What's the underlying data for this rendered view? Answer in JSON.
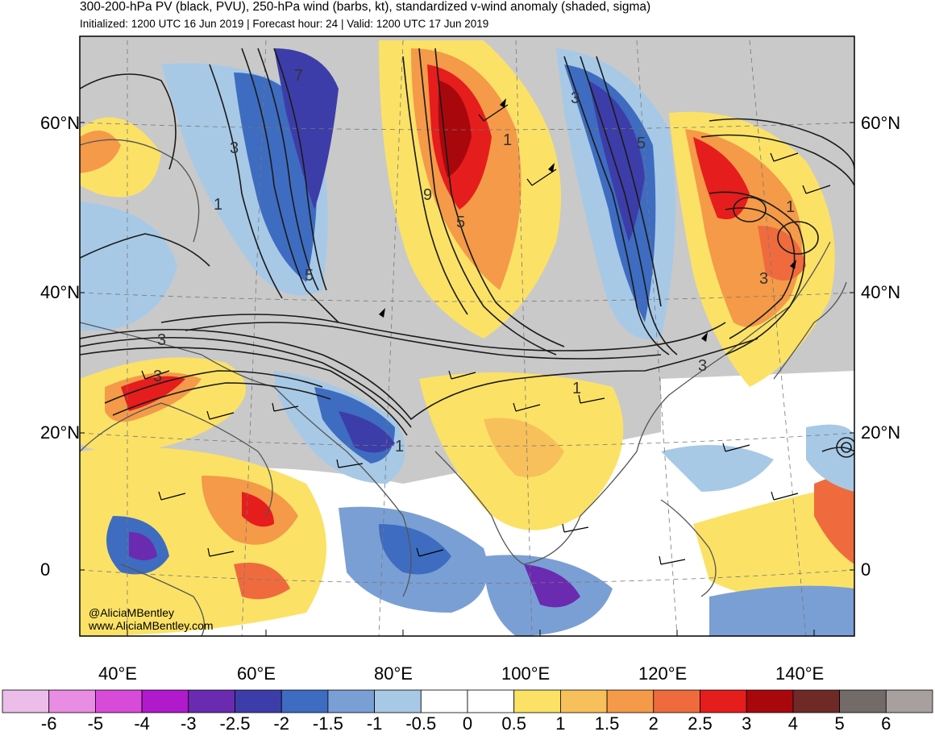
{
  "header": {
    "title": "300-200-hPa PV (black, PVU), 250-hPa wind (barbs, kt), standardized v-wind anomaly (shaded, sigma)",
    "subtitle": "Initialized: 1200 UTC 16 Jun 2019 | Forecast hour: 24 | Valid: 1200 UTC 17 Jun 2019"
  },
  "map": {
    "lat_labels": [
      "60°N",
      "40°N",
      "20°N",
      "0"
    ],
    "lon_labels": [
      "40°E",
      "60°E",
      "80°E",
      "100°E",
      "120°E",
      "140°E"
    ],
    "pv_contour_labels": [
      "7",
      "3",
      "1",
      "5",
      "9",
      "1",
      "3",
      "5",
      "1",
      "3",
      "5",
      "3",
      "1",
      "3",
      "3",
      "1"
    ]
  },
  "colorbar": {
    "ticks": [
      "-6",
      "-5",
      "-4",
      "-3",
      "-2.5",
      "-2",
      "-1.5",
      "-1",
      "-0.5",
      "0",
      "0.5",
      "1",
      "1.5",
      "2",
      "2.5",
      "3",
      "4",
      "5",
      "6"
    ],
    "colors": [
      "#ebbde8",
      "#e88de3",
      "#d84bd8",
      "#b119cd",
      "#6a2bb1",
      "#3d3da9",
      "#3e6cc0",
      "#7a9fd4",
      "#a7c9e6",
      "#ffffff",
      "#ffffff",
      "#fbe266",
      "#f8c05a",
      "#f49a48",
      "#ef6b3d",
      "#e51d1d",
      "#a8080c",
      "#6f2a28",
      "#726b67",
      "#a8a09f"
    ]
  },
  "credit": {
    "handle": "@AliciaMBentley",
    "site": "www.AliciaMBentley.com"
  },
  "colors": {
    "land_gray": "#c8c8c8",
    "coast": "#555555",
    "contour": "#1a1a1a"
  }
}
